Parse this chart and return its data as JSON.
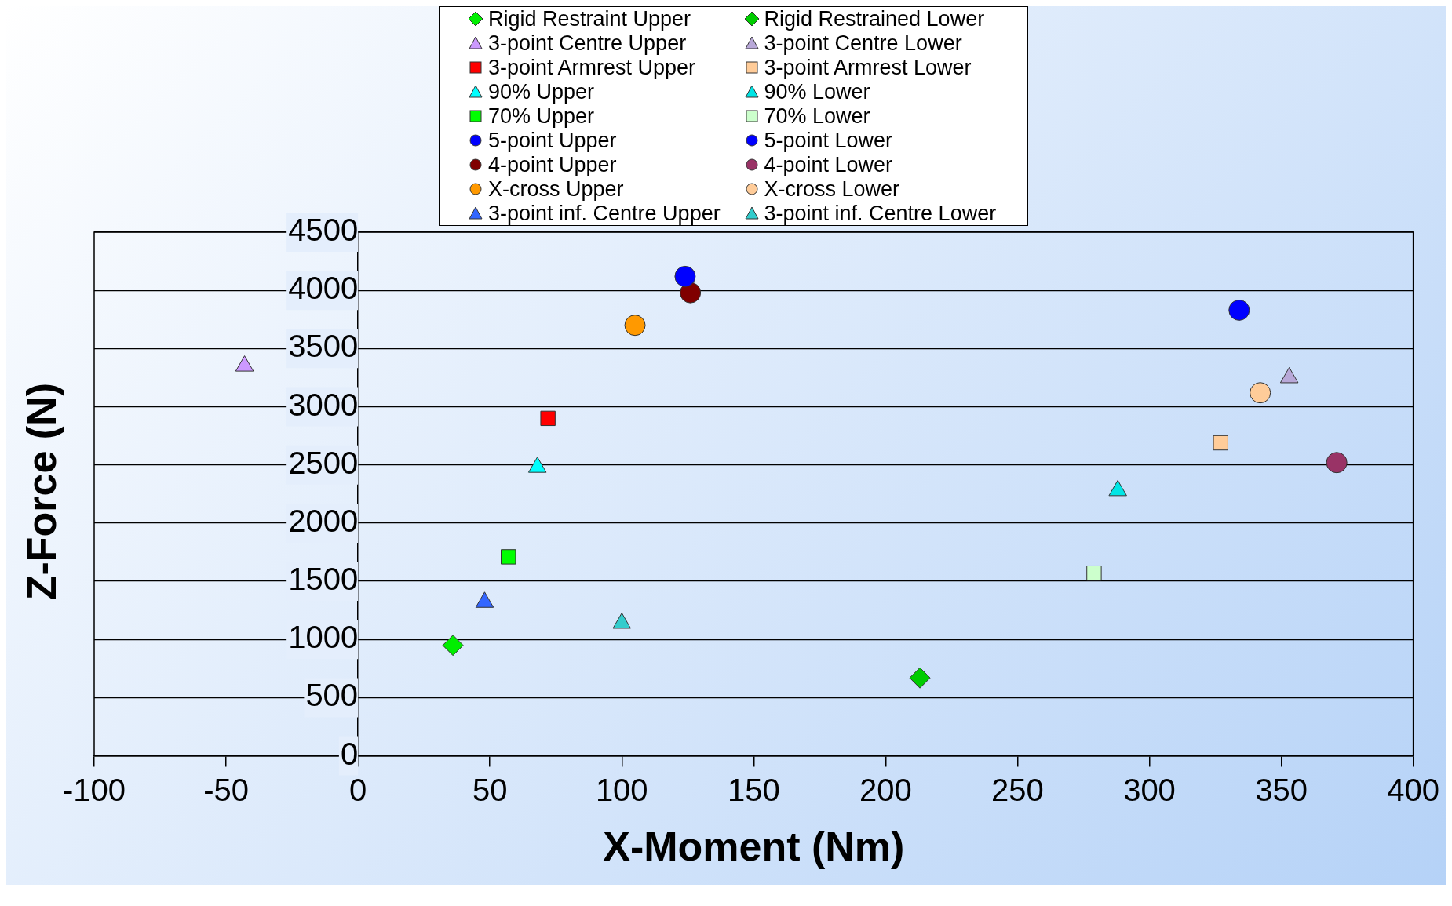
{
  "chart_data": {
    "type": "scatter",
    "xlabel": "X-Moment (Nm)",
    "ylabel": "Z-Force (N)",
    "xlim": [
      -100,
      400
    ],
    "ylim": [
      0,
      4500
    ],
    "xticks": [
      -100,
      -50,
      0,
      50,
      100,
      150,
      200,
      250,
      300,
      350,
      400
    ],
    "yticks": [
      0,
      500,
      1000,
      1500,
      2000,
      2500,
      3000,
      3500,
      4000,
      4500
    ],
    "grid": "y",
    "legend": "top",
    "series": [
      {
        "name": "Rigid Restraint Upper",
        "color": "#00ee00",
        "marker": "diamond",
        "x": [
          36
        ],
        "values": [
          950
        ]
      },
      {
        "name": "Rigid Restrained Lower",
        "color": "#00cc00",
        "marker": "diamond",
        "x": [
          213
        ],
        "values": [
          670
        ]
      },
      {
        "name": "3-point Centre Upper",
        "color": "#cc99ff",
        "marker": "triangle",
        "x": [
          -43
        ],
        "values": [
          3350
        ]
      },
      {
        "name": "3-point Centre Lower",
        "color": "#b8a8d8",
        "marker": "triangle",
        "x": [
          353
        ],
        "values": [
          3250
        ]
      },
      {
        "name": "3-point Armrest Upper",
        "color": "#ff0000",
        "marker": "square",
        "x": [
          72
        ],
        "values": [
          2900
        ]
      },
      {
        "name": "3-point Armrest Lower",
        "color": "#ffcc99",
        "marker": "square",
        "x": [
          327
        ],
        "values": [
          2690
        ]
      },
      {
        "name": "90% Upper",
        "color": "#00ffff",
        "marker": "triangle",
        "x": [
          68
        ],
        "values": [
          2480
        ]
      },
      {
        "name": "90% Lower",
        "color": "#00e5e5",
        "marker": "triangle",
        "x": [
          288
        ],
        "values": [
          2280
        ]
      },
      {
        "name": "70% Upper",
        "color": "#00ff00",
        "marker": "square",
        "x": [
          57
        ],
        "values": [
          1710
        ]
      },
      {
        "name": "70% Lower",
        "color": "#ccffcc",
        "marker": "square",
        "x": [
          279
        ],
        "values": [
          1570
        ]
      },
      {
        "name": "5-point Upper",
        "color": "#0000ff",
        "marker": "circle",
        "x": [
          124
        ],
        "values": [
          4120
        ]
      },
      {
        "name": "5-point Lower",
        "color": "#0000ff",
        "marker": "circle",
        "x": [
          334
        ],
        "values": [
          3830
        ]
      },
      {
        "name": "4-point Upper",
        "color": "#800000",
        "marker": "circle",
        "x": [
          126
        ],
        "values": [
          3980
        ]
      },
      {
        "name": "4-point Lower",
        "color": "#993366",
        "marker": "circle",
        "x": [
          371
        ],
        "values": [
          2520
        ]
      },
      {
        "name": "X-cross Upper",
        "color": "#ff9900",
        "marker": "circle",
        "x": [
          105
        ],
        "values": [
          3700
        ]
      },
      {
        "name": "X-cross Lower",
        "color": "#ffcc99",
        "marker": "circle",
        "x": [
          342
        ],
        "values": [
          3120
        ]
      },
      {
        "name": "3-point inf. Centre Upper",
        "color": "#3366ff",
        "marker": "triangle",
        "x": [
          48
        ],
        "values": [
          1320
        ]
      },
      {
        "name": "3-point inf. Centre Lower",
        "color": "#33cccc",
        "marker": "triangle",
        "x": [
          100
        ],
        "values": [
          1140
        ]
      }
    ]
  }
}
